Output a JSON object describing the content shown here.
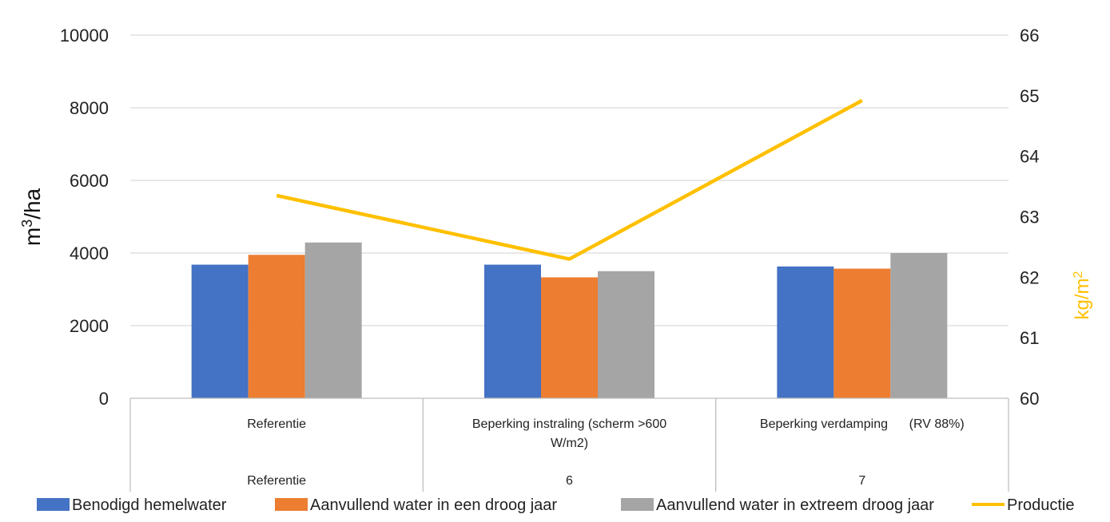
{
  "chart_data": {
    "type": "bar",
    "categories": [
      {
        "label_lines": [
          "Referentie"
        ],
        "group": "Referentie"
      },
      {
        "label_lines": [
          "Beperking instraling (scherm >600",
          "W/m2)"
        ],
        "group": "6"
      },
      {
        "label_lines": [
          "Beperking verdamping      (RV 88%)"
        ],
        "group": "7"
      }
    ],
    "series": [
      {
        "name": "Benodigd hemelwater",
        "color": "#4472C4",
        "axis": "left",
        "values": [
          3680,
          3680,
          3630
        ]
      },
      {
        "name": "Aanvullend water in een droog jaar",
        "color": "#ED7D31",
        "axis": "left",
        "values": [
          3950,
          3330,
          3570
        ]
      },
      {
        "name": "Aanvullend water in extreem droog jaar",
        "color": "#A5A5A5",
        "axis": "left",
        "values": [
          4290,
          3500,
          4000
        ]
      }
    ],
    "line_series": [
      {
        "name": "Productie",
        "color": "#FFC000",
        "axis": "right",
        "values": [
          63.35,
          62.3,
          64.92
        ]
      }
    ],
    "y_left": {
      "min": 0,
      "max": 10000,
      "ticks": [
        0,
        2000,
        4000,
        6000,
        8000,
        10000
      ],
      "label_base": "m",
      "label_sup": "3",
      "label_rest": "/ha"
    },
    "y_right": {
      "min": 60,
      "max": 66,
      "ticks": [
        60,
        61,
        62,
        63,
        64,
        65,
        66
      ],
      "label_base": "kg/m",
      "label_sup": "2",
      "color": "#FFC000"
    },
    "grid": true,
    "legend_position": "bottom"
  }
}
